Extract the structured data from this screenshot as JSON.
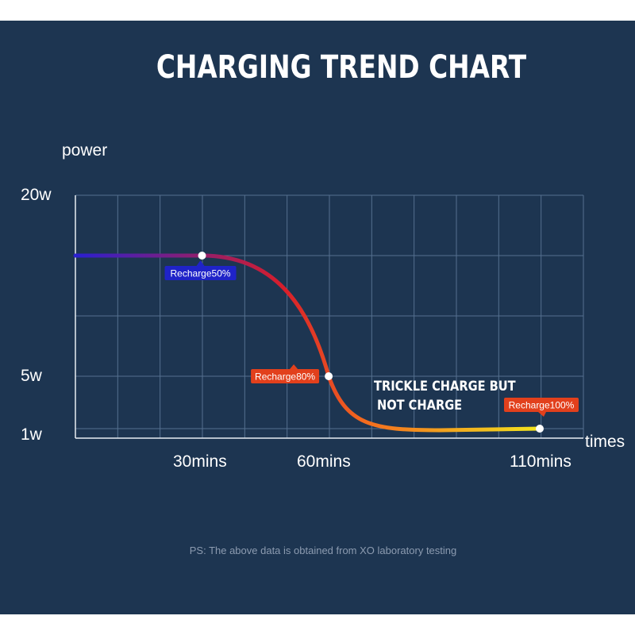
{
  "chart_data": {
    "type": "line",
    "title": "CHARGING TREND CHART",
    "ylabel": "power",
    "xlabel": "times",
    "y_ticks": [
      "20w",
      "5w",
      "1w"
    ],
    "x_ticks": [
      "30mins",
      "60mins",
      "110mins"
    ],
    "xlim": [
      0,
      120
    ],
    "series": [
      {
        "points": [
          {
            "x": 0,
            "y": 15
          },
          {
            "x": 30,
            "y": 15
          },
          {
            "x": 60,
            "y": 5
          },
          {
            "x": 110,
            "y": 1
          }
        ]
      }
    ],
    "annotations": [
      {
        "text": "Recharge50%",
        "x": 30,
        "y": 15,
        "color": "#1f23c8"
      },
      {
        "text": "Recharge80%",
        "x": 60,
        "y": 5,
        "color": "#e2401c"
      },
      {
        "text": "Recharge100%",
        "x": 110,
        "y": 1,
        "color": "#e2401c"
      }
    ],
    "note": "TRICKLE CHARGE BUT\nNOT CHARGE",
    "gradient_colors": [
      "#2a1fd0",
      "#d81e2a",
      "#f36a1e",
      "#f2e51e"
    ],
    "grid": true,
    "background": "#1d3551"
  },
  "footnote": "PS: The above data is obtained from XO laboratory testing"
}
